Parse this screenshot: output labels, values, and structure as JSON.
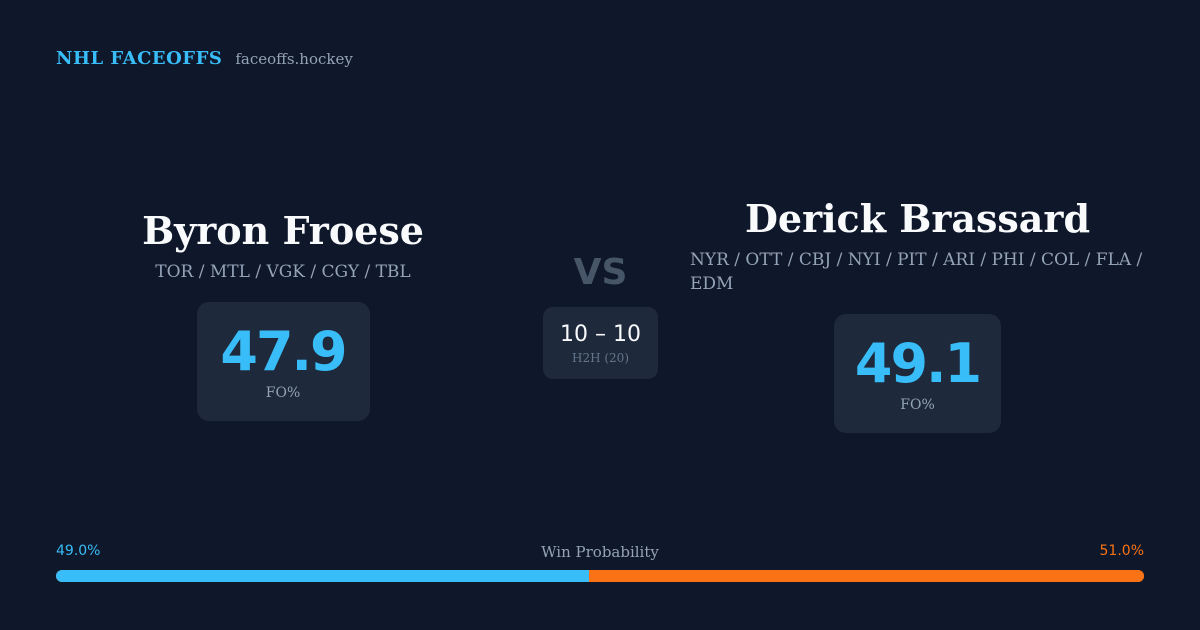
{
  "brand": {
    "name": "NHL FACEOFFS",
    "url": "faceoffs.hockey"
  },
  "player_left": {
    "name": "Byron Froese",
    "teams": "TOR / MTL / VGK / CGY / TBL",
    "fo_pct": "47.9",
    "fo_label": "FO%"
  },
  "player_right": {
    "name": "Derick Brassard",
    "teams": "NYR / OTT / CBJ / NYI / PIT / ARI / PHI / COL / FLA / EDM",
    "fo_pct": "49.1",
    "fo_label": "FO%"
  },
  "matchup": {
    "vs": "VS",
    "h2h_score": "10 – 10",
    "h2h_label": "H2H (20)"
  },
  "win_probability": {
    "title": "Win Probability",
    "left_label": "49.0%",
    "right_label": "51.0%",
    "left_fraction": 0.49,
    "right_fraction": 0.51
  },
  "colors": {
    "background": "#0f172a",
    "card": "#1e293b",
    "accent_left": "#38bdf8",
    "accent_right": "#f97316",
    "muted_text": "#94a3b8"
  }
}
